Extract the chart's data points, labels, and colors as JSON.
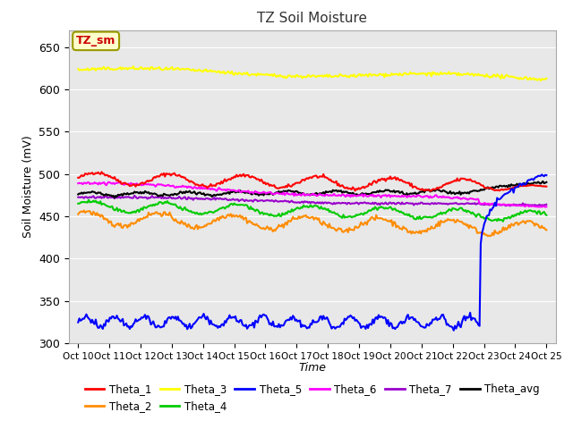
{
  "title": "TZ Soil Moisture",
  "xlabel": "Time",
  "ylabel": "Soil Moisture (mV)",
  "ylim": [
    300,
    670
  ],
  "yticks": [
    300,
    350,
    400,
    450,
    500,
    550,
    600,
    650
  ],
  "x_labels": [
    "Oct 10",
    "Oct 11",
    "Oct 12",
    "Oct 13",
    "Oct 14",
    "Oct 15",
    "Oct 16",
    "Oct 17",
    "Oct 18",
    "Oct 19",
    "Oct 20",
    "Oct 21",
    "Oct 22",
    "Oct 23",
    "Oct 24",
    "Oct 25"
  ],
  "num_points": 400,
  "colors": {
    "Theta_1": "#ff0000",
    "Theta_2": "#ff8c00",
    "Theta_3": "#ffff00",
    "Theta_4": "#00cc00",
    "Theta_5": "#0000ff",
    "Theta_6": "#ff00ff",
    "Theta_7": "#9900cc",
    "Theta_avg": "#000000"
  },
  "background_color": "#e8e8e8",
  "grid_color": "#ffffff",
  "annotation_text": "TZ_sm",
  "annotation_color": "#cc0000",
  "annotation_bg": "#ffffcc",
  "annotation_border": "#999900"
}
